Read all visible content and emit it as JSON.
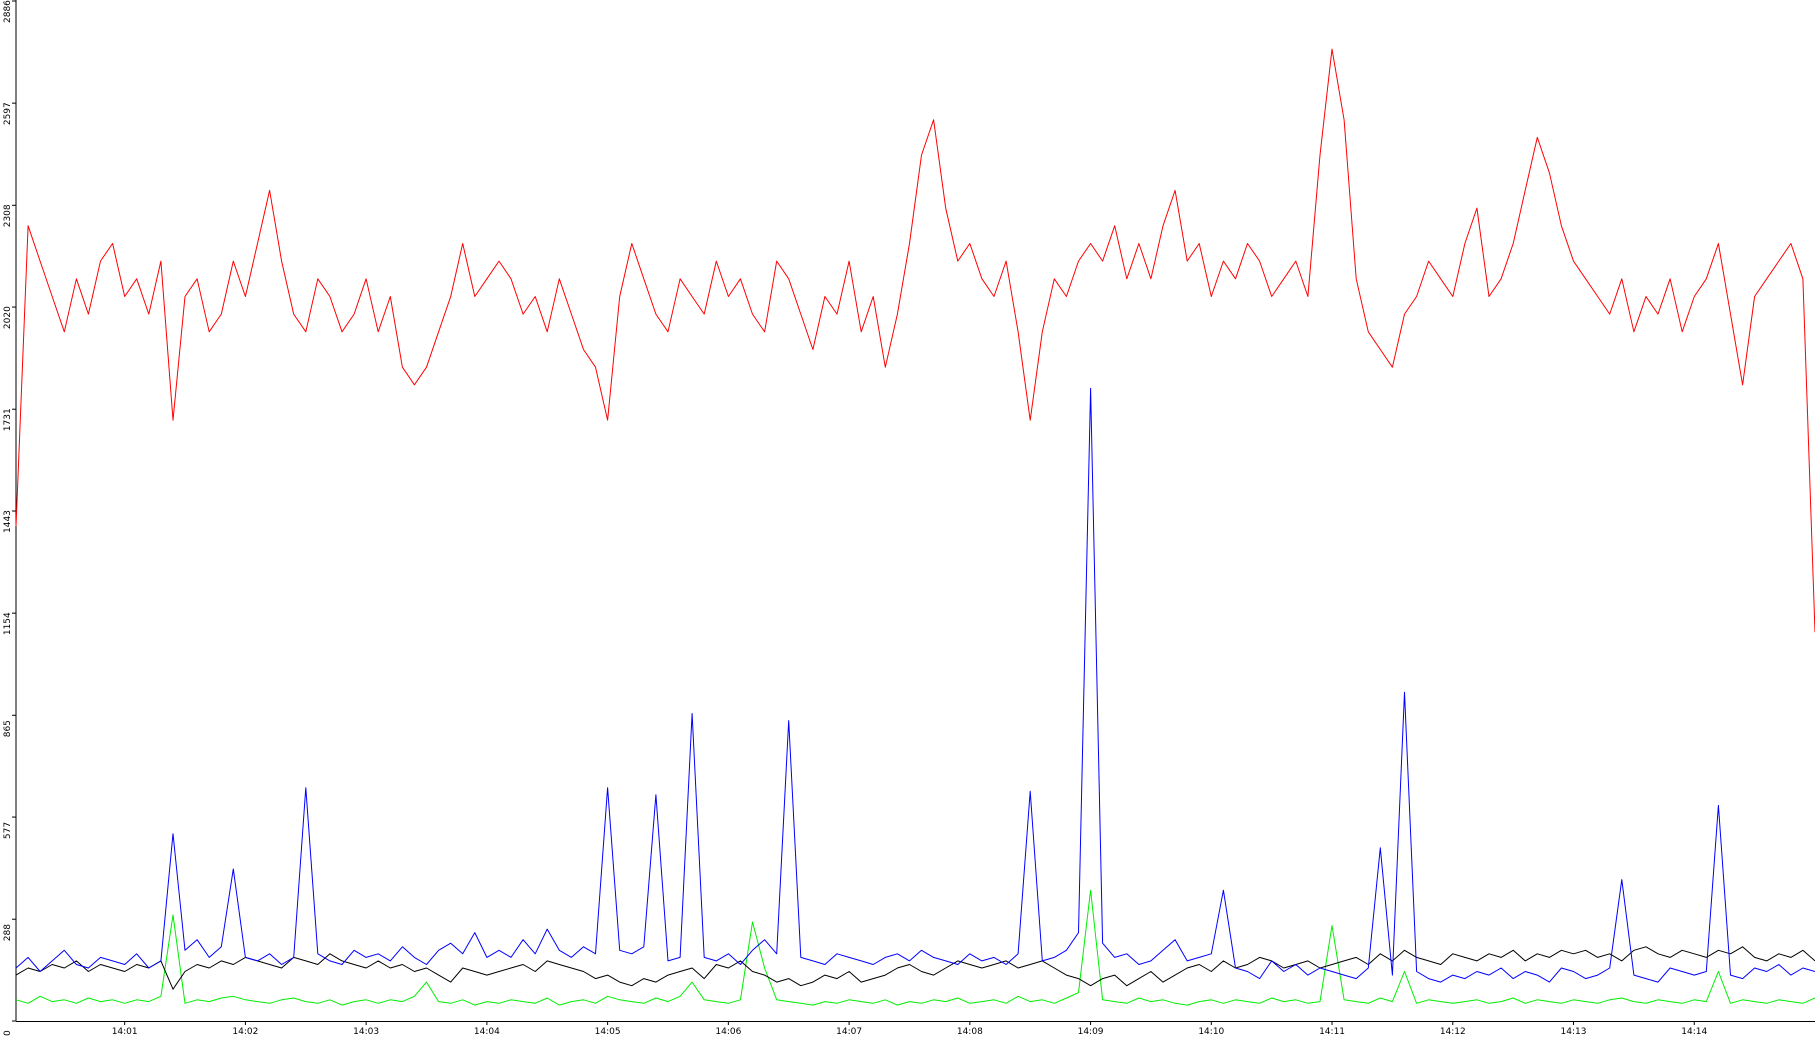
{
  "chart_data": {
    "type": "line",
    "x": [
      0.1,
      0.2,
      0.3,
      0.4,
      0.5,
      0.6,
      0.7,
      0.8,
      0.9,
      1.0,
      1.1,
      1.2,
      1.3,
      1.4,
      1.5,
      1.6,
      1.7,
      1.8,
      1.9,
      2.0,
      2.1,
      2.2,
      2.3,
      2.4,
      2.5,
      2.6,
      2.7,
      2.8,
      2.9,
      3.0,
      3.1,
      3.2,
      3.3,
      3.4,
      3.5,
      3.6,
      3.7,
      3.8,
      3.9,
      4.0,
      4.1,
      4.2,
      4.3,
      4.4,
      4.5,
      4.6,
      4.7,
      4.8,
      4.9,
      5.0,
      5.1,
      5.2,
      5.3,
      5.4,
      5.5,
      5.6,
      5.7,
      5.8,
      5.9,
      6.0,
      6.1,
      6.2,
      6.3,
      6.4,
      6.5,
      6.6,
      6.7,
      6.8,
      6.9,
      7.0,
      7.1,
      7.2,
      7.3,
      7.4,
      7.5,
      7.6,
      7.7,
      7.8,
      7.9,
      8.0,
      8.1,
      8.2,
      8.3,
      8.4,
      8.5,
      8.6,
      8.7,
      8.8,
      8.9,
      9.0,
      9.1,
      9.2,
      9.3,
      9.4,
      9.5,
      9.6,
      9.7,
      9.8,
      9.9,
      10.0,
      10.1,
      10.2,
      10.3,
      10.4,
      10.5,
      10.6,
      10.7,
      10.8,
      10.9,
      11.0,
      11.1,
      11.2,
      11.3,
      11.4,
      11.5,
      11.6,
      11.7,
      11.8,
      11.9,
      12.0,
      12.1,
      12.2,
      12.3,
      12.4,
      12.5,
      12.6,
      12.7,
      12.8,
      12.9,
      13.0,
      13.1,
      13.2,
      13.3,
      13.4,
      13.5,
      13.6,
      13.7,
      13.8,
      13.9,
      14.0,
      14.1,
      14.2,
      14.3,
      14.4,
      14.5,
      14.6,
      14.7,
      14.8,
      14.9,
      15.0
    ],
    "series": [
      {
        "color": "#ff0000",
        "values": [
          1400,
          2250,
          2150,
          2050,
          1950,
          2100,
          2000,
          2150,
          2200,
          2050,
          2100,
          2000,
          2150,
          1700,
          2050,
          2100,
          1950,
          2000,
          2150,
          2050,
          2200,
          2350,
          2150,
          2000,
          1950,
          2100,
          2050,
          1950,
          2000,
          2100,
          1950,
          2050,
          1850,
          1800,
          1850,
          1950,
          2050,
          2200,
          2050,
          2100,
          2150,
          2100,
          2000,
          2050,
          1950,
          2100,
          2000,
          1900,
          1850,
          1700,
          2050,
          2200,
          2100,
          2000,
          1950,
          2100,
          2050,
          2000,
          2150,
          2050,
          2100,
          2000,
          1950,
          2150,
          2100,
          2000,
          1900,
          2050,
          2000,
          2150,
          1950,
          2050,
          1850,
          2000,
          2200,
          2450,
          2550,
          2300,
          2150,
          2200,
          2100,
          2050,
          2150,
          1950,
          1700,
          1950,
          2100,
          2050,
          2150,
          2200,
          2150,
          2250,
          2100,
          2200,
          2100,
          2250,
          2350,
          2150,
          2200,
          2050,
          2150,
          2100,
          2200,
          2150,
          2050,
          2100,
          2150,
          2050,
          2450,
          2750,
          2550,
          2100,
          1950,
          1900,
          1850,
          2000,
          2050,
          2150,
          2100,
          2050,
          2200,
          2300,
          2050,
          2100,
          2200,
          2350,
          2500,
          2400,
          2250,
          2150,
          2100,
          2050,
          2000,
          2100,
          1950,
          2050,
          2000,
          2100,
          1950,
          2050,
          2100,
          2200,
          2000,
          1800,
          2050,
          2100,
          2150,
          2200,
          2100,
          1100
        ]
      },
      {
        "color": "#0000ff",
        "values": [
          150,
          180,
          140,
          170,
          200,
          160,
          150,
          180,
          170,
          160,
          190,
          150,
          170,
          530,
          200,
          230,
          180,
          210,
          430,
          180,
          170,
          190,
          160,
          180,
          660,
          190,
          170,
          160,
          200,
          180,
          190,
          170,
          210,
          180,
          160,
          200,
          220,
          190,
          250,
          180,
          200,
          180,
          230,
          190,
          260,
          200,
          180,
          210,
          190,
          660,
          200,
          190,
          210,
          640,
          170,
          180,
          870,
          180,
          170,
          190,
          160,
          200,
          230,
          190,
          850,
          180,
          170,
          160,
          190,
          180,
          170,
          160,
          180,
          190,
          170,
          200,
          180,
          170,
          160,
          190,
          170,
          180,
          160,
          190,
          650,
          170,
          180,
          200,
          250,
          1790,
          220,
          180,
          190,
          160,
          170,
          200,
          230,
          170,
          180,
          190,
          370,
          150,
          140,
          120,
          170,
          140,
          160,
          130,
          150,
          140,
          130,
          120,
          150,
          490,
          130,
          930,
          140,
          120,
          110,
          130,
          120,
          140,
          130,
          150,
          120,
          140,
          130,
          110,
          150,
          140,
          120,
          130,
          150,
          400,
          130,
          120,
          110,
          150,
          140,
          130,
          140,
          610,
          130,
          120,
          150,
          140,
          160,
          130,
          150,
          140
        ]
      },
      {
        "color": "#000000",
        "values": [
          130,
          150,
          140,
          160,
          150,
          170,
          140,
          160,
          150,
          140,
          160,
          150,
          170,
          90,
          140,
          160,
          150,
          170,
          160,
          180,
          170,
          160,
          150,
          180,
          170,
          160,
          190,
          170,
          160,
          150,
          170,
          150,
          160,
          140,
          150,
          130,
          110,
          150,
          140,
          130,
          140,
          150,
          160,
          140,
          170,
          160,
          150,
          140,
          120,
          130,
          110,
          100,
          120,
          110,
          130,
          140,
          150,
          120,
          160,
          150,
          170,
          140,
          130,
          110,
          120,
          100,
          110,
          130,
          120,
          140,
          110,
          120,
          130,
          150,
          160,
          140,
          130,
          150,
          170,
          160,
          150,
          160,
          170,
          150,
          160,
          170,
          150,
          130,
          120,
          100,
          120,
          130,
          100,
          120,
          140,
          110,
          130,
          150,
          160,
          140,
          170,
          150,
          160,
          180,
          170,
          150,
          160,
          170,
          150,
          160,
          170,
          180,
          160,
          190,
          170,
          200,
          180,
          170,
          160,
          190,
          180,
          170,
          190,
          180,
          200,
          170,
          190,
          180,
          200,
          190,
          200,
          180,
          190,
          170,
          200,
          210,
          190,
          180,
          200,
          190,
          180,
          200,
          190,
          210,
          180,
          170,
          190,
          180,
          200,
          170
        ]
      },
      {
        "color": "#00ee00",
        "values": [
          60,
          50,
          70,
          55,
          60,
          50,
          65,
          55,
          60,
          50,
          60,
          55,
          70,
          300,
          50,
          60,
          55,
          65,
          70,
          60,
          55,
          50,
          60,
          65,
          55,
          50,
          60,
          45,
          55,
          60,
          50,
          60,
          55,
          70,
          110,
          55,
          50,
          60,
          45,
          55,
          50,
          60,
          55,
          50,
          65,
          45,
          55,
          60,
          50,
          70,
          60,
          55,
          50,
          65,
          55,
          70,
          110,
          60,
          55,
          50,
          60,
          280,
          150,
          60,
          55,
          50,
          45,
          55,
          50,
          60,
          55,
          50,
          60,
          45,
          55,
          50,
          60,
          55,
          65,
          50,
          55,
          60,
          50,
          70,
          55,
          60,
          50,
          65,
          80,
          370,
          60,
          55,
          50,
          65,
          55,
          60,
          50,
          45,
          55,
          60,
          50,
          60,
          55,
          50,
          65,
          55,
          60,
          50,
          55,
          270,
          60,
          55,
          50,
          65,
          55,
          140,
          50,
          60,
          55,
          50,
          55,
          60,
          50,
          55,
          65,
          50,
          60,
          55,
          50,
          60,
          55,
          50,
          60,
          65,
          55,
          50,
          60,
          55,
          50,
          60,
          55,
          140,
          50,
          60,
          55,
          50,
          60,
          55,
          50,
          65
        ]
      }
    ],
    "xlim": [
      0.1,
      15.0
    ],
    "xticks": [
      {
        "value": 1,
        "label": "14:01"
      },
      {
        "value": 2,
        "label": "14:02"
      },
      {
        "value": 3,
        "label": "14:03"
      },
      {
        "value": 4,
        "label": "14:04"
      },
      {
        "value": 5,
        "label": "14:05"
      },
      {
        "value": 6,
        "label": "14:06"
      },
      {
        "value": 7,
        "label": "14:07"
      },
      {
        "value": 8,
        "label": "14:08"
      },
      {
        "value": 9,
        "label": "14:09"
      },
      {
        "value": 10,
        "label": "14:10"
      },
      {
        "value": 11,
        "label": "14:11"
      },
      {
        "value": 12,
        "label": "14:12"
      },
      {
        "value": 13,
        "label": "14:13"
      },
      {
        "value": 14,
        "label": "14:14"
      }
    ],
    "ylim": [
      0,
      2886
    ],
    "yticks": [
      0,
      288,
      577,
      865,
      1154,
      1443,
      1731,
      2020,
      2308,
      2597,
      2886
    ]
  }
}
